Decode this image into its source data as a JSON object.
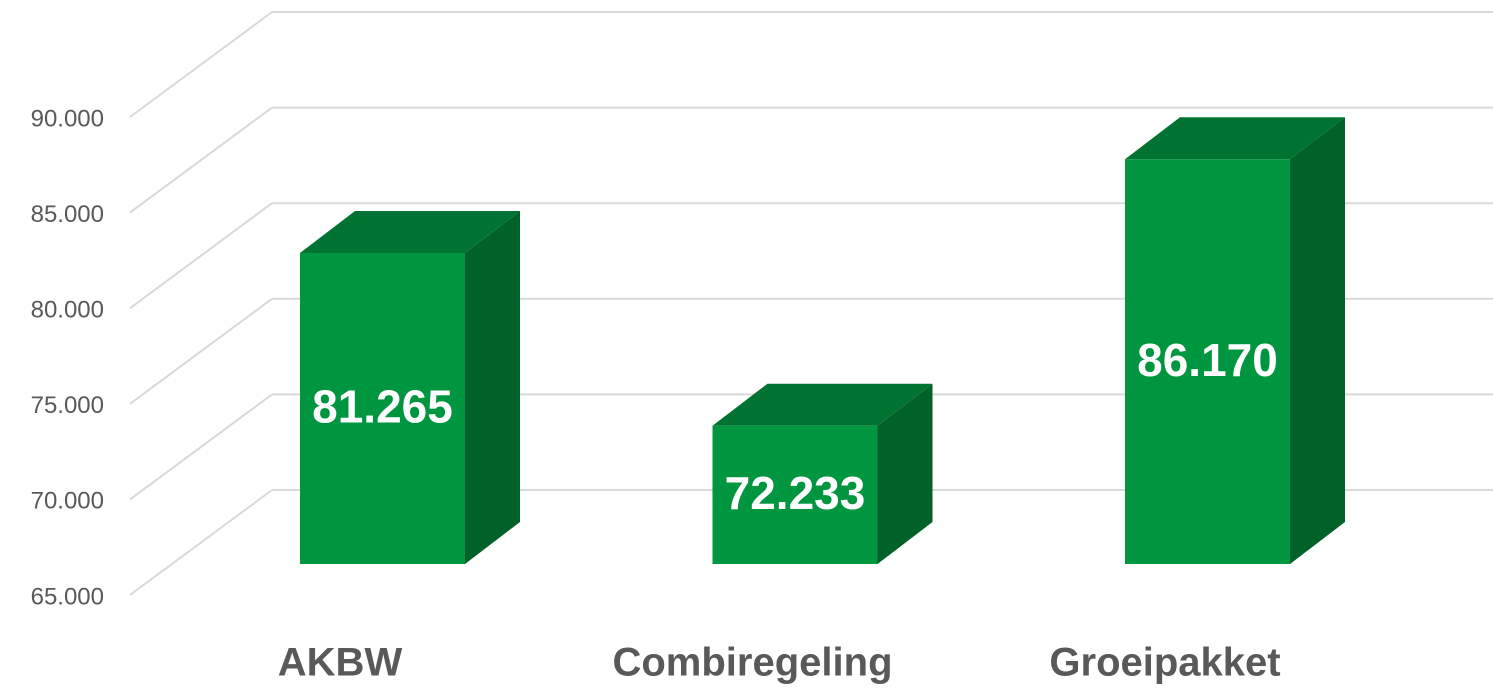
{
  "chart_data": {
    "type": "bar3d",
    "categories": [
      "AKBW",
      "Combiregeling",
      "Groeipakket"
    ],
    "values": [
      81265,
      72233,
      86170
    ],
    "value_labels": [
      "81.265",
      "72.233",
      "86.170"
    ],
    "color": "#009640",
    "ylim": [
      65000,
      90000
    ],
    "yticks": [
      {
        "value": 65000,
        "label": "65.000"
      },
      {
        "value": 70000,
        "label": "70.000"
      },
      {
        "value": 75000,
        "label": "75.000"
      },
      {
        "value": 80000,
        "label": "80.000"
      },
      {
        "value": 85000,
        "label": "85.000"
      },
      {
        "value": 90000,
        "label": "90.000"
      }
    ],
    "grid": true
  }
}
